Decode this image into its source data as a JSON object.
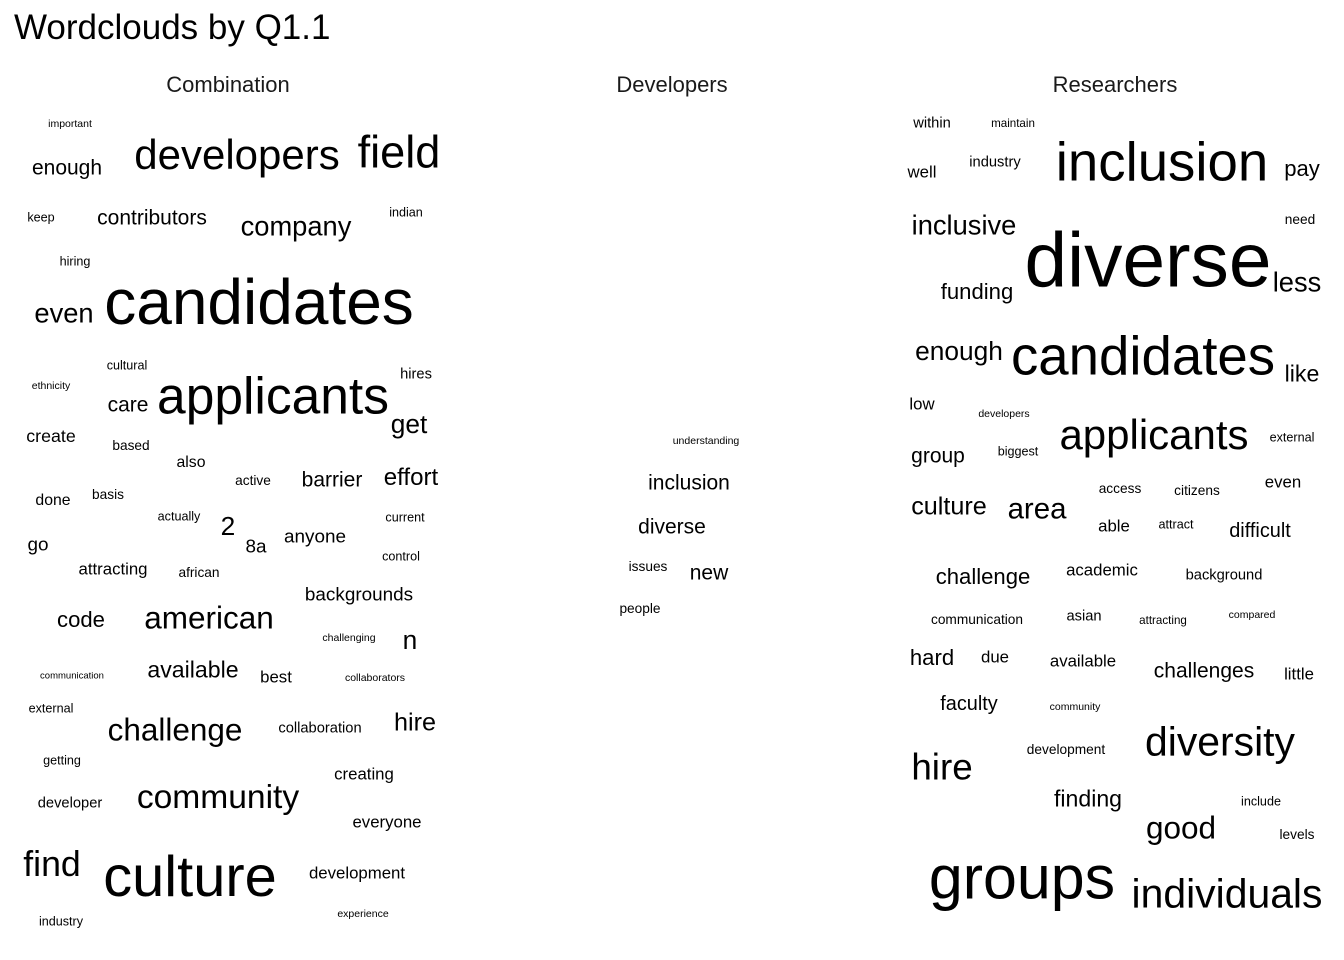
{
  "title": "Wordclouds by Q1.1",
  "chart_data": [
    {
      "type": "wordcloud",
      "title": "Combination",
      "words": [
        {
          "text": "important",
          "size": 1.0
        },
        {
          "text": "enough",
          "size": 2.0
        },
        {
          "text": "developers",
          "size": 4.0
        },
        {
          "text": "field",
          "size": 4.3
        },
        {
          "text": "keep",
          "size": 1.2
        },
        {
          "text": "contributors",
          "size": 2.0
        },
        {
          "text": "company",
          "size": 2.6
        },
        {
          "text": "indian",
          "size": 1.2
        },
        {
          "text": "hiring",
          "size": 1.2
        },
        {
          "text": "even",
          "size": 2.6
        },
        {
          "text": "candidates",
          "size": 6.1
        },
        {
          "text": "cultural",
          "size": 1.2
        },
        {
          "text": "ethnicity",
          "size": 1.0
        },
        {
          "text": "hires",
          "size": 1.4
        },
        {
          "text": "care",
          "size": 2.0
        },
        {
          "text": "applicants",
          "size": 4.9
        },
        {
          "text": "get",
          "size": 2.5
        },
        {
          "text": "create",
          "size": 1.7
        },
        {
          "text": "based",
          "size": 1.3
        },
        {
          "text": "also",
          "size": 1.5
        },
        {
          "text": "active",
          "size": 1.3
        },
        {
          "text": "barrier",
          "size": 2.0
        },
        {
          "text": "effort",
          "size": 2.3
        },
        {
          "text": "done",
          "size": 1.5
        },
        {
          "text": "basis",
          "size": 1.3
        },
        {
          "text": "actually",
          "size": 1.2
        },
        {
          "text": "2",
          "size": 2.5
        },
        {
          "text": "8a",
          "size": 1.8
        },
        {
          "text": "anyone",
          "size": 1.8
        },
        {
          "text": "current",
          "size": 1.2
        },
        {
          "text": "go",
          "size": 1.8
        },
        {
          "text": "control",
          "size": 1.2
        },
        {
          "text": "attracting",
          "size": 1.6
        },
        {
          "text": "african",
          "size": 1.3
        },
        {
          "text": "backgrounds",
          "size": 1.8
        },
        {
          "text": "code",
          "size": 2.1
        },
        {
          "text": "american",
          "size": 3.0
        },
        {
          "text": "challenging",
          "size": 1.0
        },
        {
          "text": "n",
          "size": 2.5
        },
        {
          "text": "communication",
          "size": 0.9
        },
        {
          "text": "available",
          "size": 2.2
        },
        {
          "text": "best",
          "size": 1.6
        },
        {
          "text": "collaborators",
          "size": 1.0
        },
        {
          "text": "external",
          "size": 1.2
        },
        {
          "text": "challenge",
          "size": 3.0
        },
        {
          "text": "collaboration",
          "size": 1.4
        },
        {
          "text": "hire",
          "size": 2.4
        },
        {
          "text": "getting",
          "size": 1.2
        },
        {
          "text": "creating",
          "size": 1.6
        },
        {
          "text": "developer",
          "size": 1.4
        },
        {
          "text": "community",
          "size": 3.2
        },
        {
          "text": "everyone",
          "size": 1.6
        },
        {
          "text": "find",
          "size": 3.4
        },
        {
          "text": "culture",
          "size": 5.5
        },
        {
          "text": "development",
          "size": 1.6
        },
        {
          "text": "experience",
          "size": 1.0
        },
        {
          "text": "industry",
          "size": 1.2
        }
      ]
    },
    {
      "type": "wordcloud",
      "title": "Developers",
      "words": [
        {
          "text": "understanding",
          "size": 1.0
        },
        {
          "text": "inclusion",
          "size": 2.0
        },
        {
          "text": "diverse",
          "size": 2.0
        },
        {
          "text": "issues",
          "size": 1.3
        },
        {
          "text": "new",
          "size": 2.0
        },
        {
          "text": "people",
          "size": 1.3
        }
      ]
    },
    {
      "type": "wordcloud",
      "title": "Researchers",
      "words": [
        {
          "text": "within",
          "size": 1.4
        },
        {
          "text": "maintain",
          "size": 1.1
        },
        {
          "text": "well",
          "size": 1.6
        },
        {
          "text": "industry",
          "size": 1.4
        },
        {
          "text": "inclusion",
          "size": 5.2
        },
        {
          "text": "pay",
          "size": 2.1
        },
        {
          "text": "need",
          "size": 1.3
        },
        {
          "text": "inclusive",
          "size": 2.6
        },
        {
          "text": "diverse",
          "size": 7.3
        },
        {
          "text": "funding",
          "size": 2.1
        },
        {
          "text": "less",
          "size": 2.6
        },
        {
          "text": "enough",
          "size": 2.5
        },
        {
          "text": "candidates",
          "size": 5.2
        },
        {
          "text": "like",
          "size": 2.2
        },
        {
          "text": "low",
          "size": 1.6
        },
        {
          "text": "developers",
          "size": 1.0
        },
        {
          "text": "applicants",
          "size": 4.0
        },
        {
          "text": "external",
          "size": 1.2
        },
        {
          "text": "group",
          "size": 2.0
        },
        {
          "text": "biggest",
          "size": 1.2
        },
        {
          "text": "culture",
          "size": 2.4
        },
        {
          "text": "area",
          "size": 2.8
        },
        {
          "text": "access",
          "size": 1.3
        },
        {
          "text": "citizens",
          "size": 1.3
        },
        {
          "text": "even",
          "size": 1.6
        },
        {
          "text": "able",
          "size": 1.6
        },
        {
          "text": "attract",
          "size": 1.2
        },
        {
          "text": "difficult",
          "size": 1.9
        },
        {
          "text": "challenge",
          "size": 2.1
        },
        {
          "text": "academic",
          "size": 1.6
        },
        {
          "text": "background",
          "size": 1.4
        },
        {
          "text": "communication",
          "size": 1.3
        },
        {
          "text": "asian",
          "size": 1.4
        },
        {
          "text": "attracting",
          "size": 1.1
        },
        {
          "text": "compared",
          "size": 1.0
        },
        {
          "text": "hard",
          "size": 2.1
        },
        {
          "text": "due",
          "size": 1.6
        },
        {
          "text": "available",
          "size": 1.6
        },
        {
          "text": "challenges",
          "size": 2.0
        },
        {
          "text": "little",
          "size": 1.6
        },
        {
          "text": "faculty",
          "size": 1.9
        },
        {
          "text": "community",
          "size": 1.0
        },
        {
          "text": "development",
          "size": 1.3
        },
        {
          "text": "diversity",
          "size": 3.9
        },
        {
          "text": "hire",
          "size": 3.5
        },
        {
          "text": "finding",
          "size": 2.2
        },
        {
          "text": "include",
          "size": 1.2
        },
        {
          "text": "good",
          "size": 3.0
        },
        {
          "text": "levels",
          "size": 1.3
        },
        {
          "text": "groups",
          "size": 5.8
        },
        {
          "text": "individuals",
          "size": 3.9
        }
      ]
    }
  ]
}
